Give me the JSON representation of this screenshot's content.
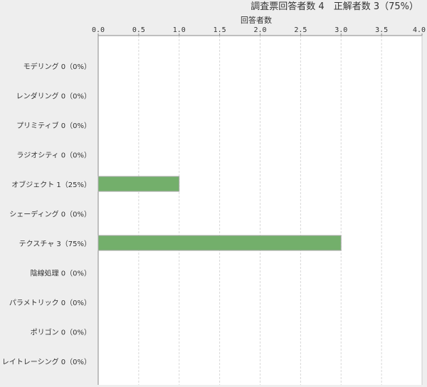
{
  "chart_data": {
    "type": "bar",
    "orientation": "horizontal",
    "title": "調査票回答者数 4　正解者数 3（75%）",
    "xlabel": "回答者数",
    "xlim": [
      0,
      4.0
    ],
    "xticks": [
      "0.0",
      "0.5",
      "1.0",
      "1.5",
      "2.0",
      "2.5",
      "3.0",
      "3.5",
      "4.0"
    ],
    "grid": true,
    "bar_color": "#73af6b",
    "categories": [
      "モデリング 0（0%）",
      "レンダリング 0（0%）",
      "プリミティブ 0（0%）",
      "ラジオシティ 0（0%）",
      "オブジェクト 1（25%）",
      "シェーディング 0（0%）",
      "テクスチャ 3（75%）",
      "陰線処理 0（0%）",
      "パラメトリック 0（0%）",
      "ポリゴン 0（0%）",
      "レイトレーシング 0（0%）"
    ],
    "values": [
      0,
      0,
      0,
      0,
      1,
      0,
      3,
      0,
      0,
      0,
      0
    ]
  }
}
